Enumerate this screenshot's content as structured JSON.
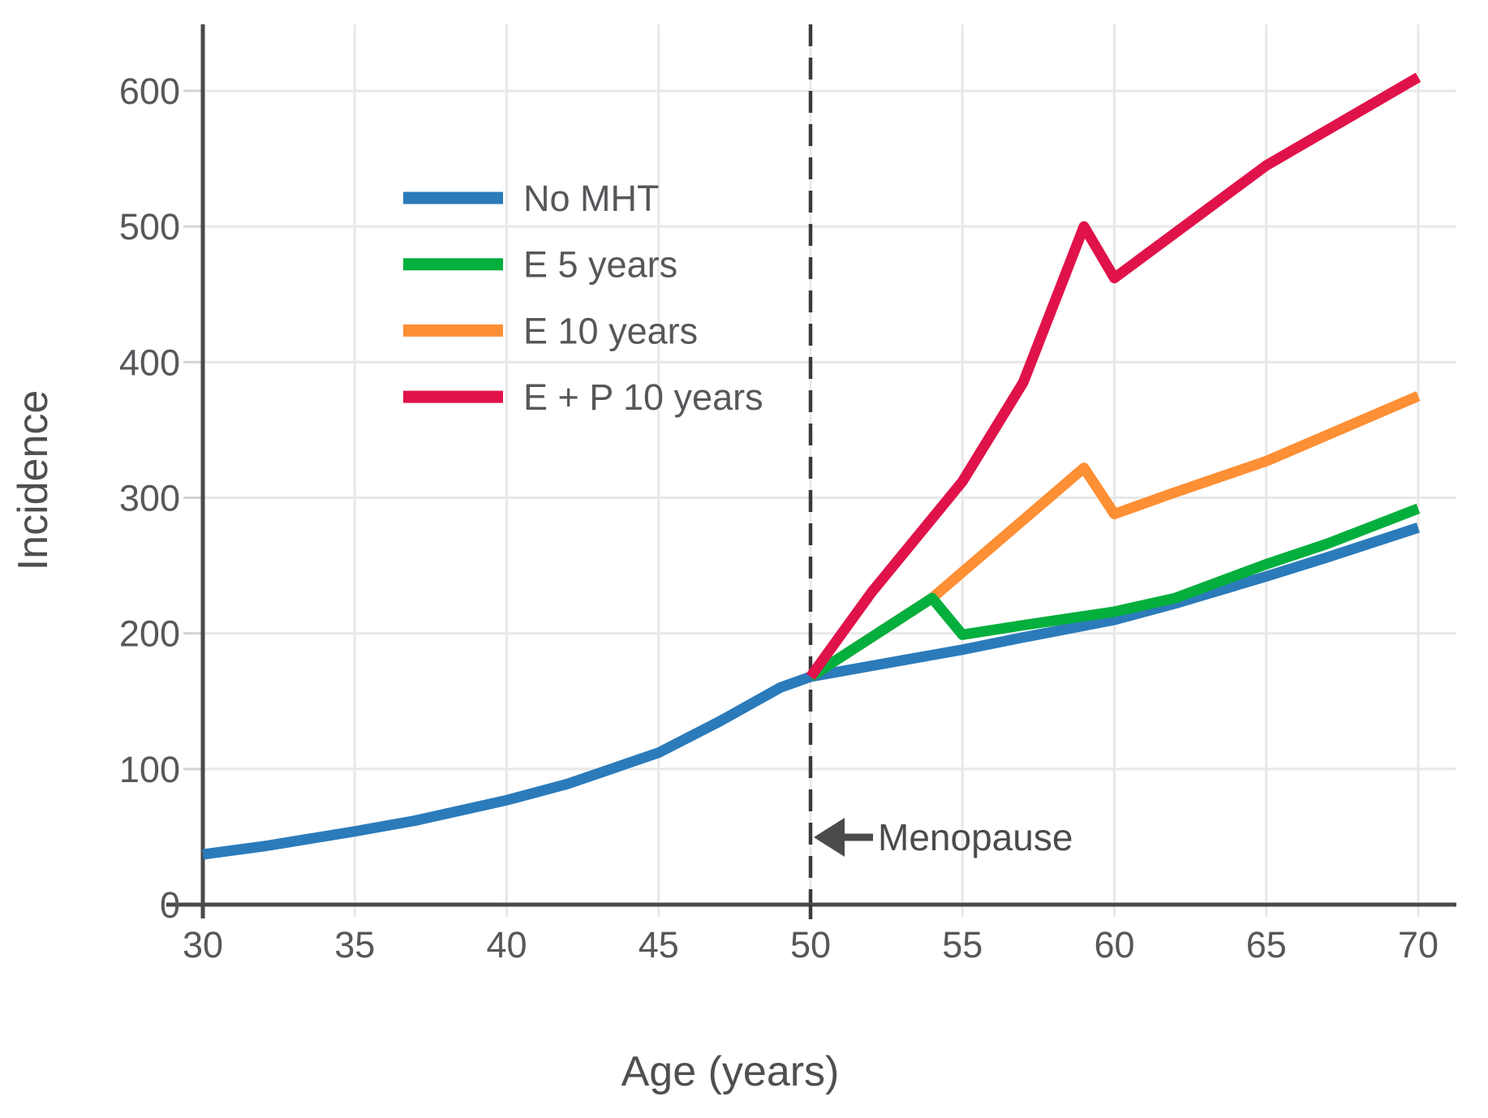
{
  "figure": {
    "background": "#ffffff",
    "grid_color": "#e8e8e8",
    "axis_color": "#4a4a4a",
    "tick_color": "#d4d4d4",
    "label_color": "#57575b"
  },
  "chart_data": {
    "type": "line",
    "title": "",
    "xlabel": "Age (years)",
    "ylabel": "Incidence",
    "xlim": [
      30,
      70
    ],
    "ylim": [
      0,
      650
    ],
    "grid": true,
    "legend_position": "upper-left-inside",
    "x_ticks": [
      30,
      35,
      40,
      45,
      50,
      55,
      60,
      65,
      70
    ],
    "y_ticks": [
      0,
      100,
      200,
      300,
      400,
      500,
      600
    ],
    "vline": {
      "x": 50,
      "style": "dashed",
      "color": "#3b3b3b"
    },
    "annotation": {
      "text": "Menopause",
      "x": 50,
      "y": 50,
      "arrow": "left-arrow"
    },
    "series": [
      {
        "name": "No MHT",
        "color": "#2b7bba",
        "points": [
          [
            30,
            37
          ],
          [
            32,
            43
          ],
          [
            35,
            54
          ],
          [
            37,
            62
          ],
          [
            40,
            77
          ],
          [
            42,
            89
          ],
          [
            45,
            112
          ],
          [
            47,
            135
          ],
          [
            49,
            160
          ],
          [
            50,
            168
          ],
          [
            52,
            176
          ],
          [
            55,
            188
          ],
          [
            57,
            197
          ],
          [
            60,
            210
          ],
          [
            62,
            222
          ],
          [
            65,
            242
          ],
          [
            67,
            256
          ],
          [
            70,
            278
          ]
        ]
      },
      {
        "name": "E 10 years",
        "color": "#fd8f34",
        "legend_order": 2,
        "points": [
          [
            50,
            168
          ],
          [
            54,
            226
          ],
          [
            59,
            322
          ],
          [
            60,
            288
          ],
          [
            62,
            304
          ],
          [
            65,
            327
          ],
          [
            70,
            375
          ]
        ]
      },
      {
        "name": "E 5 years",
        "color": "#04af3d",
        "legend_order": 1,
        "points": [
          [
            50,
            168
          ],
          [
            54,
            226
          ],
          [
            55,
            199
          ],
          [
            57,
            206
          ],
          [
            60,
            216
          ],
          [
            62,
            226
          ],
          [
            65,
            251
          ],
          [
            67,
            266
          ],
          [
            70,
            292
          ]
        ]
      },
      {
        "name": "E + P 10 years",
        "color": "#e0124a",
        "legend_order": 3,
        "points": [
          [
            50,
            168
          ],
          [
            52,
            230
          ],
          [
            55,
            312
          ],
          [
            57,
            385
          ],
          [
            59,
            500
          ],
          [
            60,
            462
          ],
          [
            65,
            545
          ],
          [
            70,
            610
          ]
        ]
      }
    ],
    "legend": [
      {
        "label": "No MHT",
        "color": "#2b7bba"
      },
      {
        "label": "E 5 years",
        "color": "#04af3d"
      },
      {
        "label": "E 10 years",
        "color": "#fd8f34"
      },
      {
        "label": "E + P 10 years",
        "color": "#e0124a"
      }
    ]
  }
}
